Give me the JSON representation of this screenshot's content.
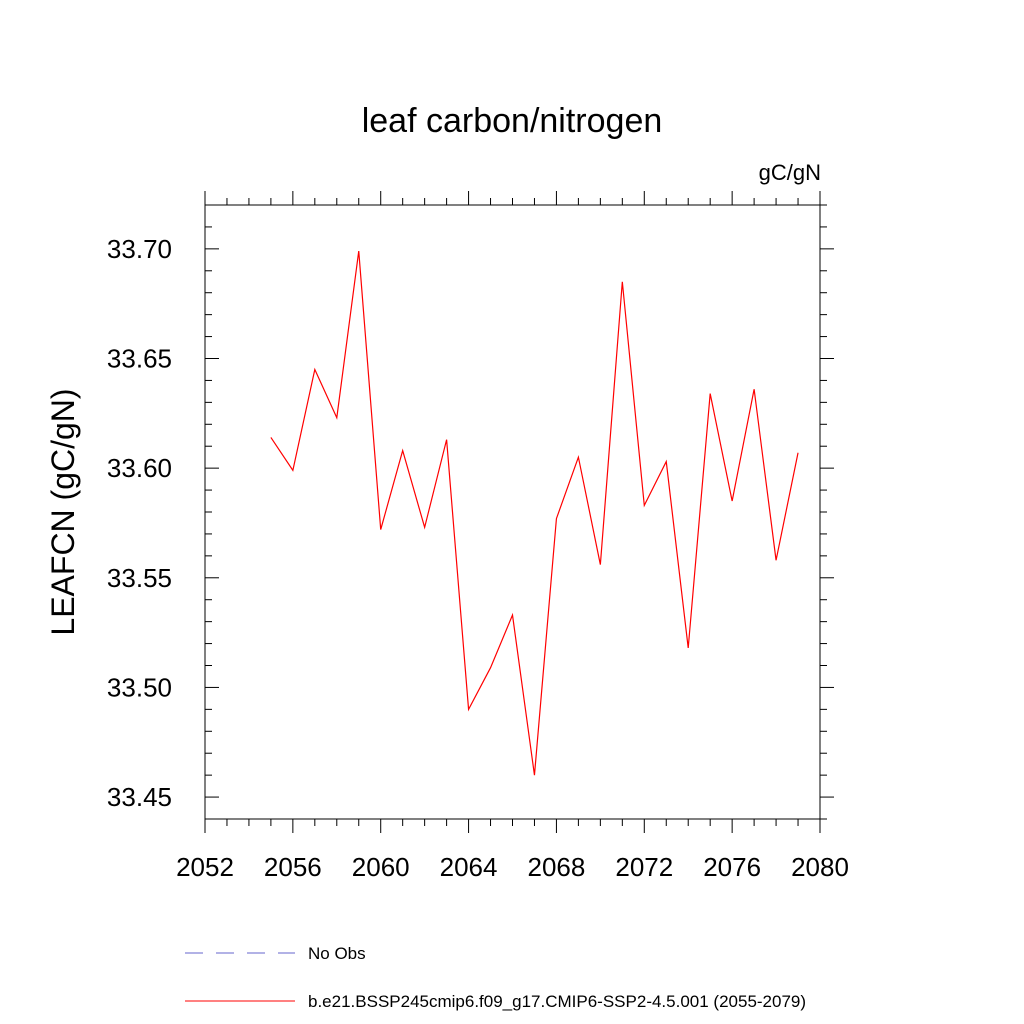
{
  "chart_data": {
    "type": "line",
    "title": "leaf carbon/nitrogen",
    "units_label": "gC/gN",
    "ylabel": "LEAFCN  (gC/gN)",
    "xlabel": "",
    "xlim": [
      2052,
      2080
    ],
    "ylim": [
      33.44,
      33.72
    ],
    "x_ticks": [
      2052,
      2056,
      2060,
      2064,
      2068,
      2072,
      2076,
      2080
    ],
    "x_tick_labels": [
      "2052",
      "2056",
      "2060",
      "2064",
      "2068",
      "2072",
      "2076",
      "2080"
    ],
    "y_ticks": [
      33.45,
      33.5,
      33.55,
      33.6,
      33.65,
      33.7
    ],
    "y_tick_labels": [
      "33.45",
      "33.50",
      "33.55",
      "33.60",
      "33.65",
      "33.70"
    ],
    "series": [
      {
        "name": "b.e21.BSSP245cmip6.f09_g17.CMIP6-SSP2-4.5.001 (2055-2079)",
        "color": "#ff0000",
        "style": "solid",
        "x": [
          2055,
          2056,
          2057,
          2058,
          2059,
          2060,
          2061,
          2062,
          2063,
          2064,
          2065,
          2066,
          2067,
          2068,
          2069,
          2070,
          2071,
          2072,
          2073,
          2074,
          2075,
          2076,
          2077,
          2078,
          2079
        ],
        "y": [
          33.614,
          33.599,
          33.645,
          33.623,
          33.699,
          33.572,
          33.608,
          33.573,
          33.613,
          33.49,
          33.509,
          33.533,
          33.46,
          33.577,
          33.605,
          33.556,
          33.685,
          33.583,
          33.603,
          33.518,
          33.634,
          33.585,
          33.636,
          33.558,
          33.607
        ]
      }
    ],
    "legend": [
      {
        "label": "No Obs",
        "color": "#6666cc",
        "style": "dashed"
      },
      {
        "label": "b.e21.BSSP245cmip6.f09_g17.CMIP6-SSP2-4.5.001 (2055-2079)",
        "color": "#ff0000",
        "style": "solid"
      }
    ],
    "grid": false,
    "legend_position": "bottom"
  }
}
